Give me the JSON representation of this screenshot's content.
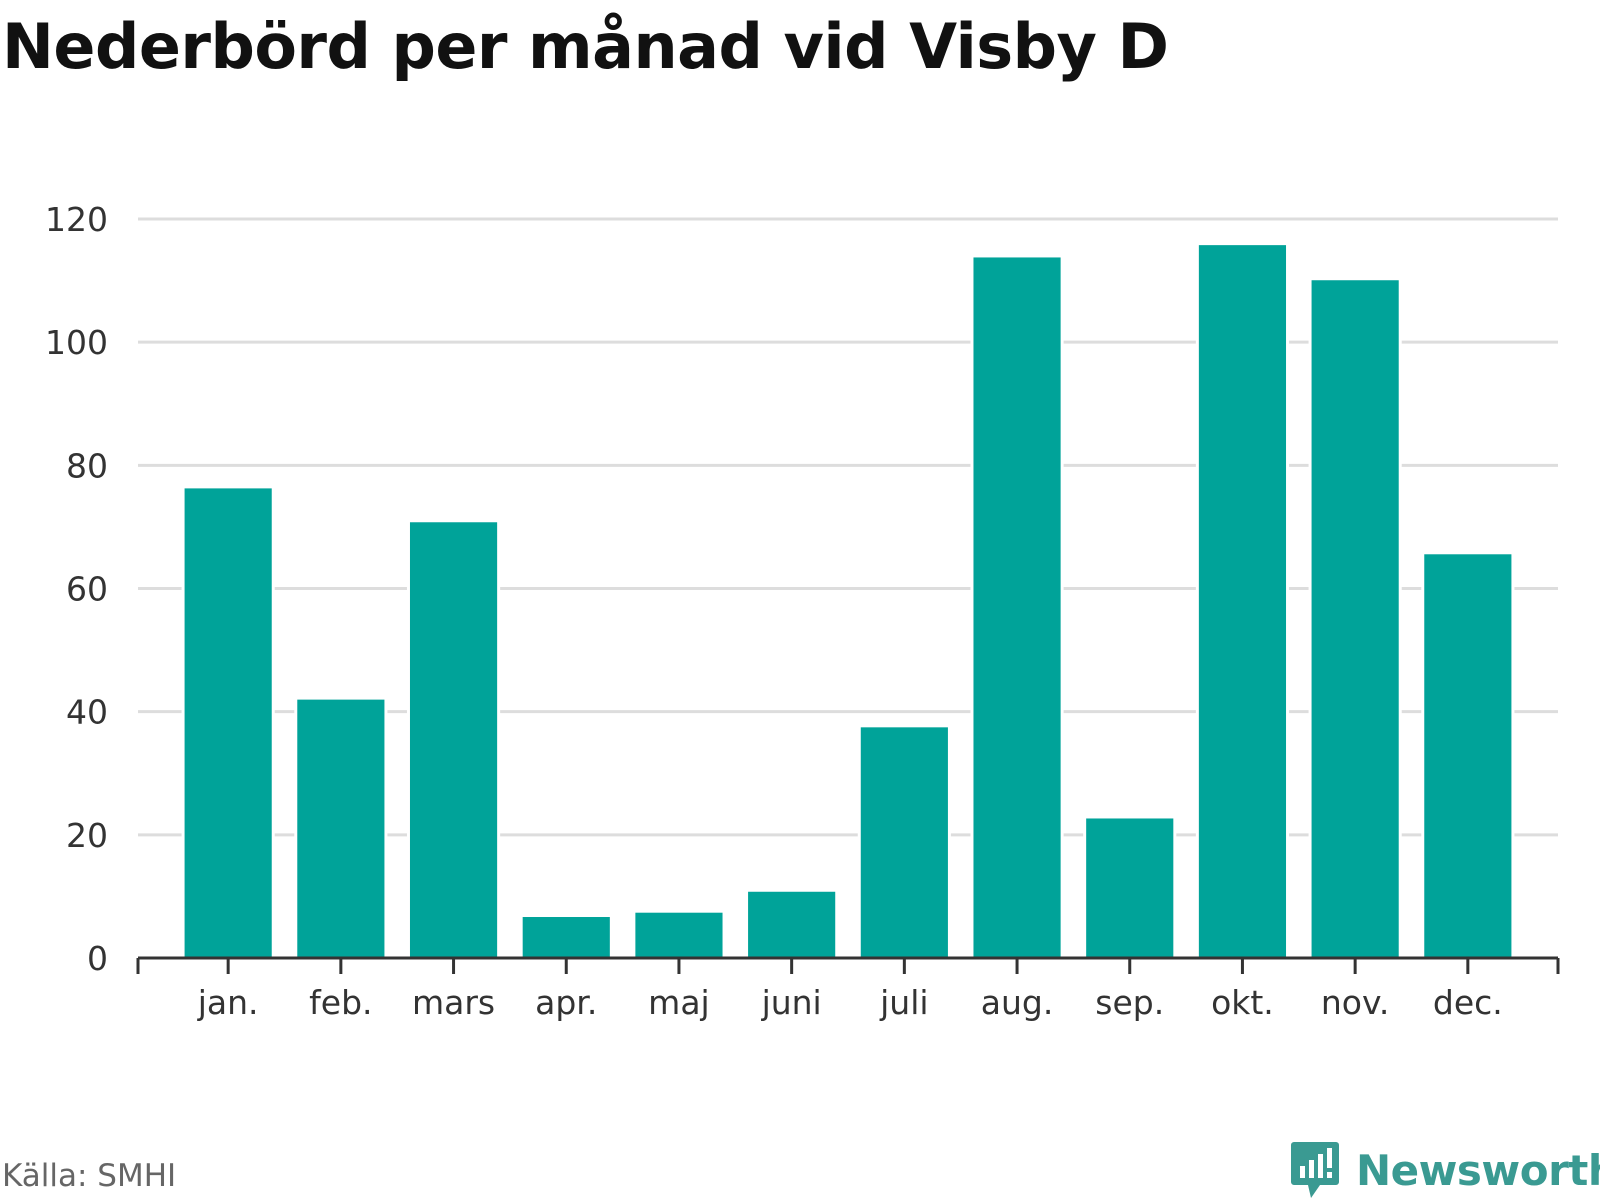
{
  "title": "Nederbörd per månad vid Visby D",
  "source": "Källa: SMHI",
  "brand": {
    "name": "Newsworthy",
    "icon": "newsworthy-logo-icon"
  },
  "colors": {
    "bar": "#00a399",
    "grid": "#dddddd",
    "axis": "#333333"
  },
  "chart_data": {
    "type": "bar",
    "categories": [
      "jan.",
      "feb.",
      "mars",
      "apr.",
      "maj",
      "juni",
      "juli",
      "aug.",
      "sep.",
      "okt.",
      "nov.",
      "dec."
    ],
    "values": [
      76.5,
      42.2,
      71.0,
      6.9,
      7.6,
      11.0,
      37.7,
      114.0,
      22.9,
      116.0,
      110.3,
      65.8
    ],
    "ylim": [
      0,
      120
    ],
    "yticks": [
      0,
      20,
      40,
      60,
      80,
      100,
      120
    ],
    "xlabel": "",
    "ylabel": "",
    "grid": true,
    "legend": "none"
  }
}
